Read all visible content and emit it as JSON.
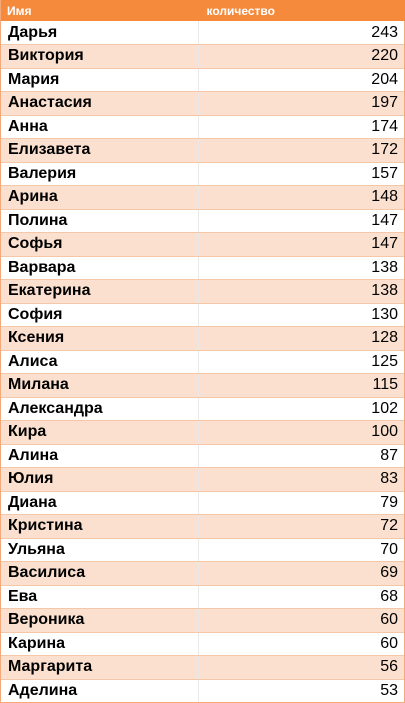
{
  "table": {
    "headers": {
      "name": "Имя",
      "count": "количество"
    },
    "rows": [
      {
        "name": "Дарья",
        "count": "243"
      },
      {
        "name": "Виктория",
        "count": "220"
      },
      {
        "name": "Мария",
        "count": "204"
      },
      {
        "name": "Анастасия",
        "count": "197"
      },
      {
        "name": "Анна",
        "count": "174"
      },
      {
        "name": "Елизавета",
        "count": "172"
      },
      {
        "name": "Валерия",
        "count": "157"
      },
      {
        "name": "Арина",
        "count": "148"
      },
      {
        "name": "Полина",
        "count": "147"
      },
      {
        "name": "Софья",
        "count": "147"
      },
      {
        "name": "Варвара",
        "count": "138"
      },
      {
        "name": "Екатерина",
        "count": "138"
      },
      {
        "name": "София",
        "count": "130"
      },
      {
        "name": "Ксения",
        "count": "128"
      },
      {
        "name": "Алиса",
        "count": "125"
      },
      {
        "name": "Милана",
        "count": "115"
      },
      {
        "name": "Александра",
        "count": "102"
      },
      {
        "name": "Кира",
        "count": "100"
      },
      {
        "name": "Алина",
        "count": "87"
      },
      {
        "name": "Юлия",
        "count": "83"
      },
      {
        "name": "Диана",
        "count": "79"
      },
      {
        "name": "Кристина",
        "count": "72"
      },
      {
        "name": "Ульяна",
        "count": "70"
      },
      {
        "name": "Василиса",
        "count": "69"
      },
      {
        "name": "Ева",
        "count": "68"
      },
      {
        "name": "Вероника",
        "count": "60"
      },
      {
        "name": "Карина",
        "count": "60"
      },
      {
        "name": "Маргарита",
        "count": "56"
      },
      {
        "name": "Аделина",
        "count": "53"
      }
    ]
  },
  "colors": {
    "header_background": "#f58a3d",
    "header_text": "#ffffff",
    "band_light": "#ffffff",
    "band_tinted": "#fbe0cf"
  }
}
